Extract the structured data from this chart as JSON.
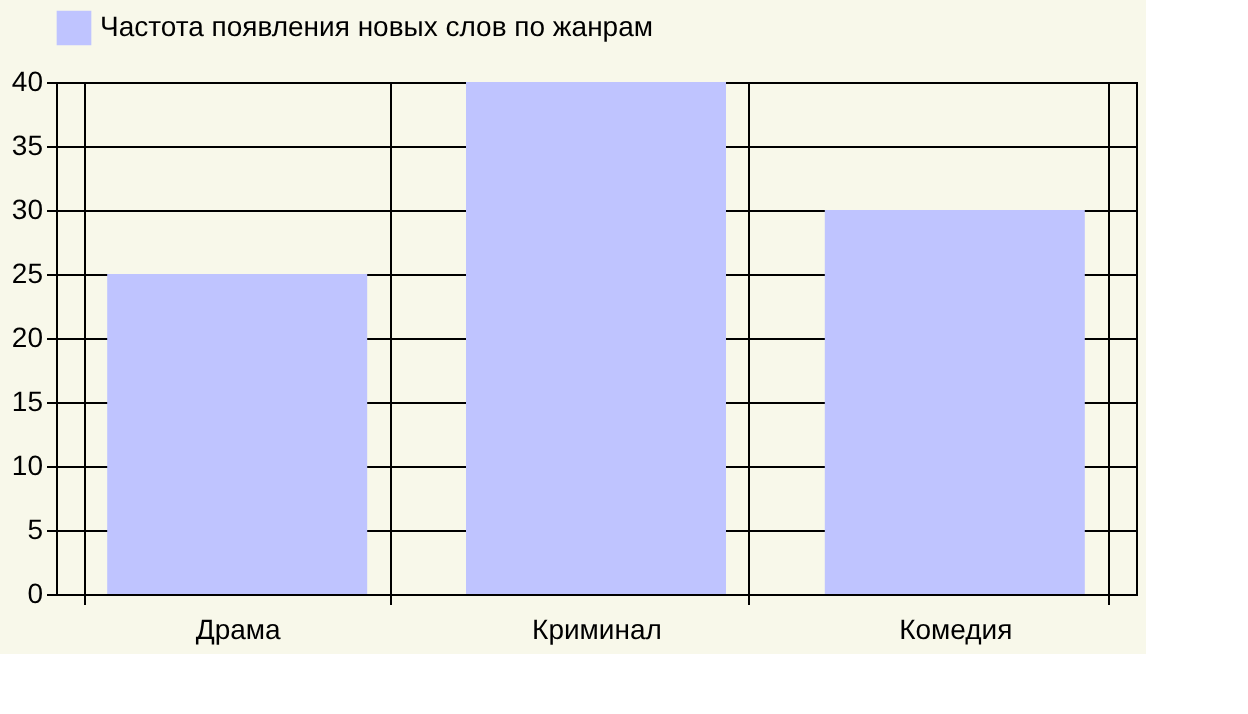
{
  "chart_data": {
    "type": "bar",
    "categories": [
      "Драма",
      "Криминал",
      "Комедия"
    ],
    "series": [
      {
        "name": "Частота появления новых слов по жанрам",
        "color": "#bfc4ff",
        "values": [
          25,
          40,
          30
        ]
      }
    ],
    "ylim": [
      0,
      40
    ],
    "yticks": [
      0,
      5,
      10,
      15,
      20,
      25,
      30,
      35,
      40
    ],
    "grid": true,
    "legend": "top"
  }
}
